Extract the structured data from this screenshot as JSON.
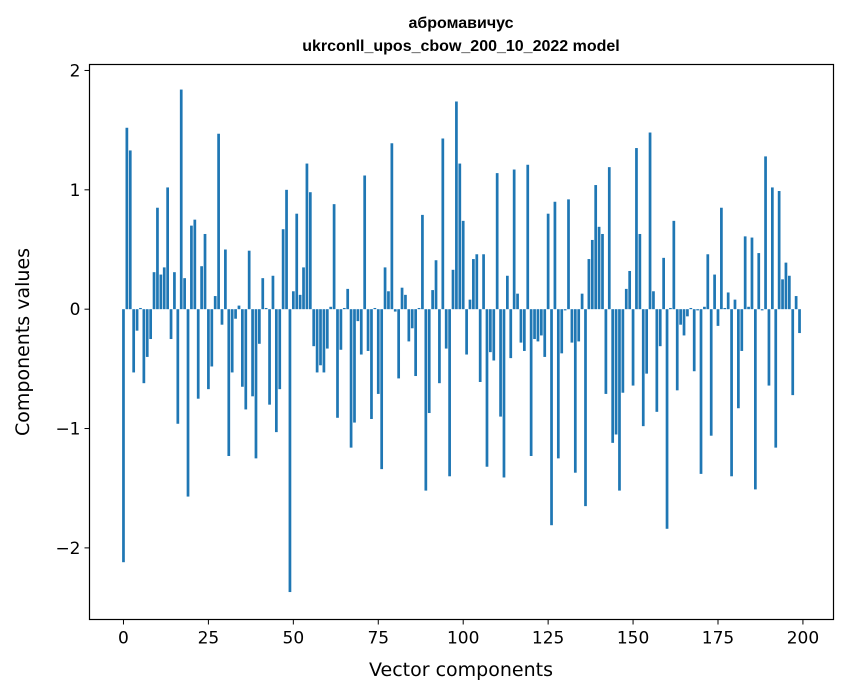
{
  "chart_data": {
    "type": "bar",
    "title": "абромавичус",
    "subtitle": "ukrconll_upos_cbow_200_10_2022 model",
    "xlabel": "Vector components",
    "ylabel": "Components values",
    "xlim": [
      -10,
      209
    ],
    "ylim": [
      -2.6,
      2.05
    ],
    "xticks": [
      0,
      25,
      50,
      75,
      100,
      125,
      150,
      175,
      200
    ],
    "xtick_labels": [
      "0",
      "25",
      "50",
      "75",
      "100",
      "125",
      "150",
      "175",
      "200"
    ],
    "yticks": [
      -2,
      -1,
      0,
      1,
      2
    ],
    "ytick_labels": [
      "−2",
      "−1",
      "0",
      "1",
      "2"
    ],
    "bar_color": "#1f77b4",
    "grid": false,
    "x": [
      0,
      1,
      2,
      3,
      4,
      5,
      6,
      7,
      8,
      9,
      10,
      11,
      12,
      13,
      14,
      15,
      16,
      17,
      18,
      19,
      20,
      21,
      22,
      23,
      24,
      25,
      26,
      27,
      28,
      29,
      30,
      31,
      32,
      33,
      34,
      35,
      36,
      37,
      38,
      39,
      40,
      41,
      42,
      43,
      44,
      45,
      46,
      47,
      48,
      49,
      50,
      51,
      52,
      53,
      54,
      55,
      56,
      57,
      58,
      59,
      60,
      61,
      62,
      63,
      64,
      65,
      66,
      67,
      68,
      69,
      70,
      71,
      72,
      73,
      74,
      75,
      76,
      77,
      78,
      79,
      80,
      81,
      82,
      83,
      84,
      85,
      86,
      87,
      88,
      89,
      90,
      91,
      92,
      93,
      94,
      95,
      96,
      97,
      98,
      99,
      100,
      101,
      102,
      103,
      104,
      105,
      106,
      107,
      108,
      109,
      110,
      111,
      112,
      113,
      114,
      115,
      116,
      117,
      118,
      119,
      120,
      121,
      122,
      123,
      124,
      125,
      126,
      127,
      128,
      129,
      130,
      131,
      132,
      133,
      134,
      135,
      136,
      137,
      138,
      139,
      140,
      141,
      142,
      143,
      144,
      145,
      146,
      147,
      148,
      149,
      150,
      151,
      152,
      153,
      154,
      155,
      156,
      157,
      158,
      159,
      160,
      161,
      162,
      163,
      164,
      165,
      166,
      167,
      168,
      169,
      170,
      171,
      172,
      173,
      174,
      175,
      176,
      177,
      178,
      179,
      180,
      181,
      182,
      183,
      184,
      185,
      186,
      187,
      188,
      189,
      190,
      191,
      192,
      193,
      194,
      195,
      196,
      197,
      198,
      199
    ],
    "values": [
      -2.12,
      1.52,
      1.33,
      -0.53,
      -0.18,
      0.01,
      -0.62,
      -0.4,
      -0.25,
      0.31,
      0.85,
      0.29,
      0.35,
      1.02,
      -0.25,
      0.31,
      -0.96,
      1.84,
      0.26,
      -1.57,
      0.7,
      0.75,
      -0.75,
      0.36,
      0.63,
      -0.67,
      -0.48,
      0.11,
      1.47,
      -0.13,
      0.5,
      -1.23,
      -0.53,
      -0.08,
      0.03,
      -0.65,
      -0.84,
      0.49,
      -0.73,
      -1.25,
      -0.29,
      0.26,
      0.01,
      -0.8,
      0.28,
      -1.03,
      -0.67,
      0.67,
      1.0,
      -2.37,
      0.15,
      0.8,
      0.12,
      0.35,
      1.22,
      0.98,
      -0.31,
      -0.53,
      -0.47,
      -0.53,
      -0.33,
      0.02,
      0.88,
      -0.91,
      -0.34,
      0.01,
      0.17,
      -1.16,
      -0.95,
      -0.1,
      -0.38,
      1.12,
      -0.35,
      -0.92,
      0.01,
      -0.71,
      -1.34,
      0.35,
      0.15,
      1.39,
      -0.02,
      -0.58,
      0.18,
      0.12,
      -0.27,
      -0.16,
      -0.56,
      0.01,
      0.79,
      -1.52,
      -0.87,
      0.16,
      0.41,
      -0.62,
      1.43,
      -0.33,
      -1.4,
      0.33,
      1.74,
      1.22,
      0.74,
      -0.38,
      0.08,
      0.42,
      0.46,
      -0.61,
      0.46,
      -1.32,
      -0.36,
      -0.43,
      1.14,
      -0.9,
      -1.41,
      0.28,
      -0.41,
      1.17,
      0.13,
      -0.28,
      -0.35,
      1.21,
      -1.23,
      -0.25,
      -0.27,
      -0.22,
      -0.4,
      0.8,
      -1.81,
      0.9,
      -1.25,
      -0.37,
      -0.01,
      0.92,
      -0.28,
      -1.37,
      -0.27,
      0.13,
      -1.65,
      0.42,
      0.58,
      1.04,
      0.69,
      0.63,
      -0.71,
      1.19,
      -1.12,
      -1.05,
      -1.52,
      -0.7,
      0.17,
      0.32,
      -0.64,
      1.35,
      0.63,
      -0.98,
      -0.54,
      1.48,
      0.15,
      -0.86,
      -0.31,
      0.43,
      -1.84,
      0.01,
      0.74,
      -0.68,
      -0.13,
      -0.22,
      -0.06,
      0.01,
      -0.52,
      -0.01,
      -1.38,
      0.02,
      0.46,
      -1.06,
      0.29,
      -0.14,
      0.85,
      0.01,
      0.14,
      -1.4,
      0.08,
      -0.83,
      -0.35,
      0.61,
      0.02,
      0.6,
      -1.51,
      0.47,
      -0.01,
      1.28,
      -0.64,
      1.02,
      -1.16,
      0.99,
      0.25,
      0.39,
      0.28,
      -0.72,
      0.11,
      -0.2
    ]
  }
}
